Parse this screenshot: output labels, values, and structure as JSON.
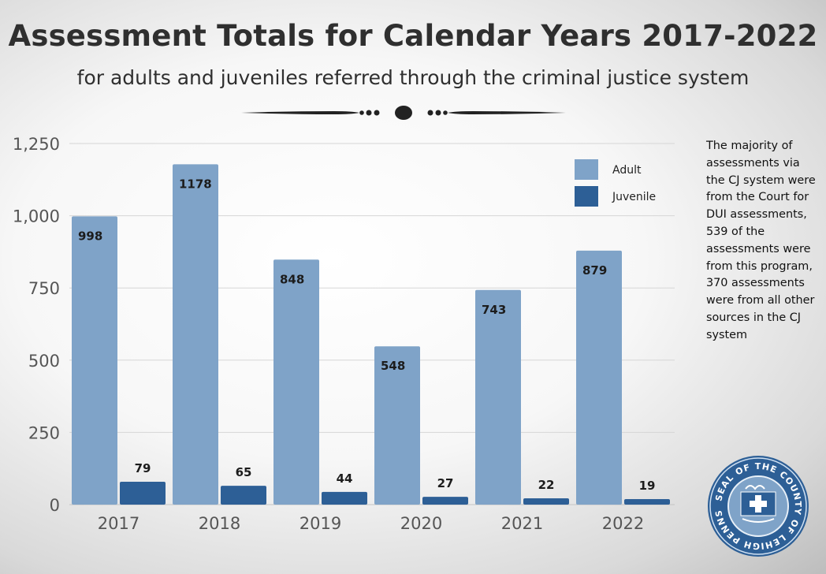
{
  "header": {
    "title": "Assessment Totals for Calendar Years 2017-2022",
    "subtitle": "for adults and juveniles referred through the criminal justice system"
  },
  "note": "The majority of assessments via the CJ system were from the Court for DUI assessments, 539 of the assessments were from this program, 370 assessments were from all other sources in the CJ system",
  "seal": {
    "text": "SEAL OF THE COUNTY OF LEHIGH PENNSYLVANIA",
    "name": "county-seal"
  },
  "colors": {
    "adult": "#7fa3c8",
    "juvenile": "#2d5f96",
    "grid": "#d6d6d6",
    "axis_text": "#555555"
  },
  "chart_data": {
    "type": "bar",
    "categories": [
      "2017",
      "2018",
      "2019",
      "2020",
      "2021",
      "2022"
    ],
    "series": [
      {
        "name": "Adult",
        "values": [
          998,
          1178,
          848,
          548,
          743,
          879
        ],
        "labels": [
          "998",
          "1178",
          "848",
          "548",
          "743",
          "879"
        ]
      },
      {
        "name": "Juvenile",
        "values": [
          79,
          65,
          44,
          27,
          22,
          19
        ],
        "labels": [
          "79",
          "65",
          "44",
          "27",
          "22",
          "19"
        ]
      }
    ],
    "yticks": [
      {
        "value": 0,
        "label": "0"
      },
      {
        "value": 250,
        "label": "250"
      },
      {
        "value": 500,
        "label": "500"
      },
      {
        "value": 750,
        "label": "750"
      },
      {
        "value": 1000,
        "label": "1,000"
      },
      {
        "value": 1250,
        "label": "1,250"
      }
    ],
    "ylim": [
      0,
      1250
    ],
    "grid": true,
    "legend_position": "top-right"
  }
}
